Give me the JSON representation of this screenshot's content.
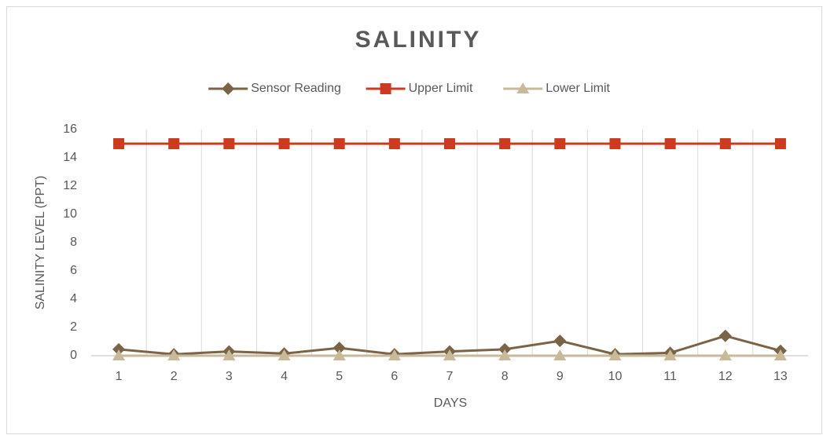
{
  "chart_data": {
    "type": "line",
    "title": "SALINITY",
    "x_label": "DAYS",
    "y_label": "SALINITY LEVEL (PPT)",
    "categories": [
      "1",
      "2",
      "3",
      "4",
      "5",
      "6",
      "7",
      "8",
      "9",
      "10",
      "11",
      "12",
      "13"
    ],
    "series": [
      {
        "name": "Sensor Reading",
        "color": "#7b6445",
        "marker": "diamond",
        "values": [
          0.45,
          0.1,
          0.3,
          0.15,
          0.55,
          0.1,
          0.3,
          0.45,
          1.05,
          0.1,
          0.2,
          1.4,
          0.35
        ]
      },
      {
        "name": "Upper Limit",
        "color": "#cc3b1f",
        "marker": "square",
        "values": [
          15,
          15,
          15,
          15,
          15,
          15,
          15,
          15,
          15,
          15,
          15,
          15,
          15
        ]
      },
      {
        "name": "Lower Limit",
        "color": "#c9b99b",
        "marker": "triangle",
        "values": [
          0,
          0,
          0,
          0,
          0,
          0,
          0,
          0,
          0,
          0,
          0,
          0,
          0
        ]
      }
    ],
    "ylim": [
      0,
      16
    ],
    "yticks": [
      0,
      2,
      4,
      6,
      8,
      10,
      12,
      14,
      16
    ],
    "legend": "top",
    "grid": "vertical"
  }
}
